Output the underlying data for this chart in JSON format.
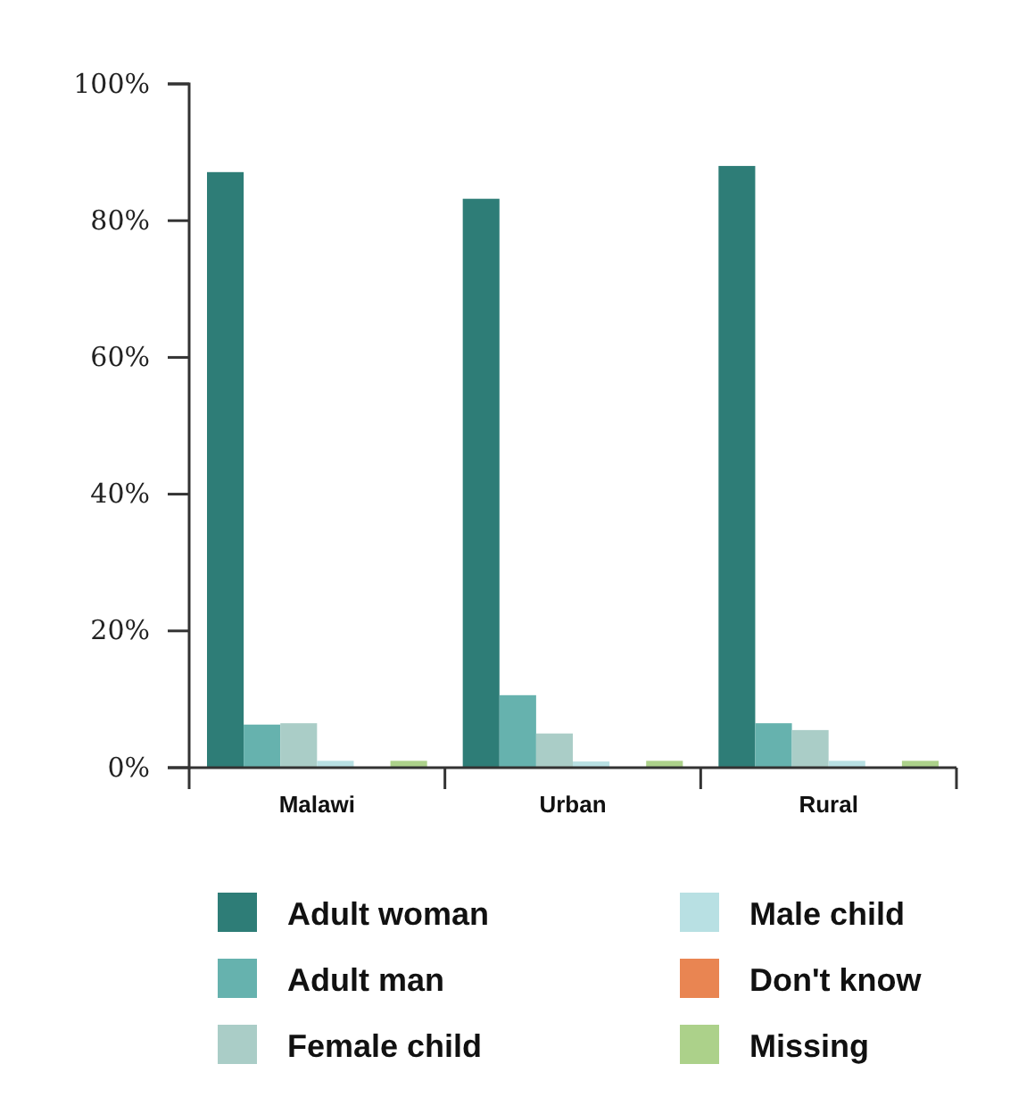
{
  "chart_data": {
    "type": "bar",
    "categories": [
      "Malawi",
      "Urban",
      "Rural"
    ],
    "series": [
      {
        "name": "Adult woman",
        "color": "#2e7d77",
        "values": [
          87.1,
          83.2,
          88.0
        ]
      },
      {
        "name": "Adult man",
        "color": "#66b2ae",
        "values": [
          6.3,
          10.6,
          6.5
        ]
      },
      {
        "name": "Female child",
        "color": "#aacdc7",
        "values": [
          6.5,
          5.0,
          5.5
        ]
      },
      {
        "name": "Male child",
        "color": "#b8e0e3",
        "values": [
          1.0,
          0.9,
          1.0
        ]
      },
      {
        "name": "Don't know",
        "color": "#e98552",
        "values": [
          0,
          0,
          0
        ]
      },
      {
        "name": "Missing",
        "color": "#acd18a",
        "values": [
          1.0,
          1.0,
          1.0
        ]
      }
    ],
    "ylim": [
      0,
      100
    ],
    "yticks": [
      {
        "value": 0,
        "label": "0%"
      },
      {
        "value": 20,
        "label": "20%"
      },
      {
        "value": 40,
        "label": "40%"
      },
      {
        "value": 60,
        "label": "60%"
      },
      {
        "value": 80,
        "label": "80%"
      },
      {
        "value": 100,
        "label": "100%"
      }
    ],
    "grid": false,
    "legend": "bottom"
  }
}
